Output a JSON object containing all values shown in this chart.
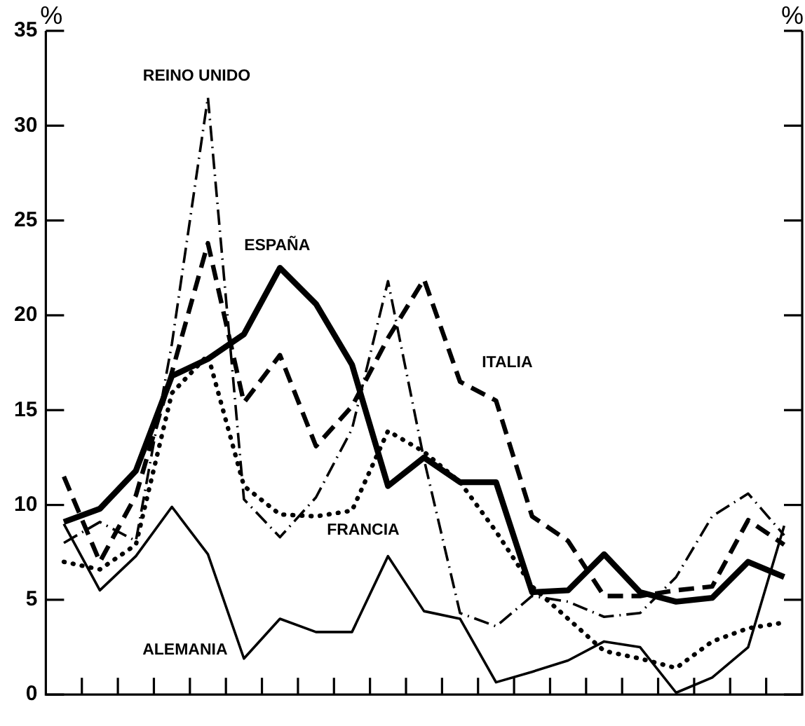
{
  "chart_data": {
    "type": "line",
    "ylabel": "%",
    "y2label": "%",
    "categories": [
      null,
      null,
      null,
      null,
      null,
      null,
      null,
      null,
      null,
      null,
      null,
      null,
      null,
      null,
      null,
      null,
      null,
      null,
      null,
      null,
      null
    ],
    "ylim": [
      0,
      35
    ],
    "yticks": [
      0,
      5,
      10,
      15,
      20,
      25,
      30,
      35
    ],
    "grid": false,
    "legend": false,
    "series": [
      {
        "name": "ESPAÑA",
        "color": "#000000",
        "line_style": "solid",
        "values": [
          9.1,
          9.8,
          11.8,
          16.8,
          17.7,
          19.0,
          22.5,
          20.6,
          17.4,
          11.0,
          12.5,
          11.2,
          11.2,
          5.4,
          5.5,
          7.4,
          5.4,
          4.9,
          5.1,
          7.0,
          6.2
        ]
      },
      {
        "name": "ITALIA",
        "color": "#000000",
        "line_style": "dashed",
        "values": [
          11.5,
          7.0,
          10.5,
          17.0,
          23.8,
          15.4,
          17.9,
          13.1,
          15.2,
          18.8,
          21.9,
          16.5,
          15.5,
          9.4,
          8.1,
          5.2,
          5.2,
          5.5,
          5.7,
          9.2,
          7.9
        ]
      },
      {
        "name": "REINO UNIDO",
        "color": "#000000",
        "line_style": "dashdot",
        "values": [
          8.0,
          9.1,
          8.1,
          18.5,
          31.5,
          10.3,
          8.3,
          10.4,
          14.0,
          21.8,
          12.4,
          4.3,
          3.6,
          5.2,
          4.9,
          4.1,
          4.3,
          6.2,
          9.4,
          10.6,
          8.4
        ]
      },
      {
        "name": "FRANCIA",
        "color": "#000000",
        "line_style": "dotted",
        "values": [
          7.0,
          6.6,
          7.9,
          15.9,
          17.9,
          11.0,
          9.5,
          9.4,
          9.7,
          13.9,
          12.8,
          11.2,
          8.6,
          5.7,
          4.0,
          2.3,
          1.9,
          1.4,
          2.8,
          3.5,
          3.8
        ]
      },
      {
        "name": "ALEMANIA",
        "color": "#000000",
        "line_style": "solid",
        "values": [
          9.0,
          5.5,
          7.3,
          9.9,
          7.4,
          1.9,
          4.0,
          3.3,
          3.3,
          7.3,
          4.4,
          4.0,
          0.65,
          1.2,
          1.8,
          2.8,
          2.5,
          0.1,
          0.9,
          2.5,
          8.9
        ]
      }
    ]
  }
}
